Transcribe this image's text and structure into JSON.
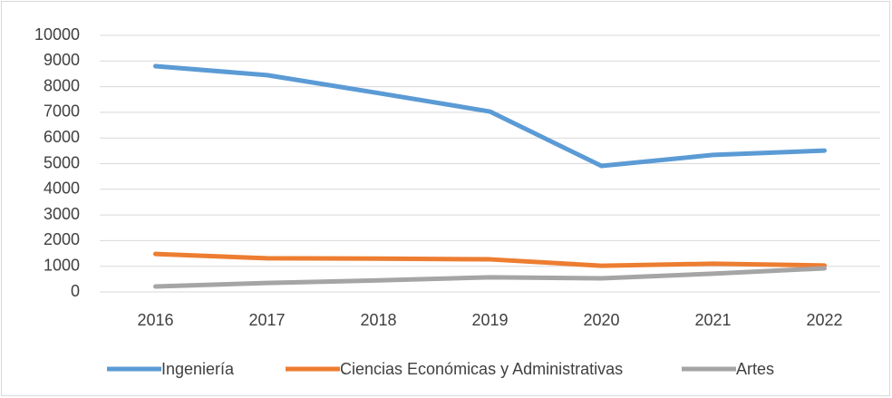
{
  "chart_data": {
    "type": "line",
    "categories": [
      "2016",
      "2017",
      "2018",
      "2019",
      "2020",
      "2021",
      "2022"
    ],
    "series": [
      {
        "name": "Ingeniería",
        "color": "#5b9bd5",
        "values": [
          8800,
          8450,
          7750,
          7030,
          4910,
          5340,
          5510
        ]
      },
      {
        "name": "Ciencias Económicas y Administrativas",
        "color": "#ed7d31",
        "values": [
          1480,
          1310,
          1300,
          1270,
          1020,
          1100,
          1030
        ]
      },
      {
        "name": "Artes",
        "color": "#a5a5a5",
        "values": [
          210,
          350,
          450,
          570,
          530,
          710,
          920
        ]
      }
    ],
    "ylim": [
      0,
      10000
    ],
    "yticks": [
      0,
      1000,
      2000,
      3000,
      4000,
      5000,
      6000,
      7000,
      8000,
      9000,
      10000
    ],
    "grid": true,
    "legend": "bottom"
  }
}
